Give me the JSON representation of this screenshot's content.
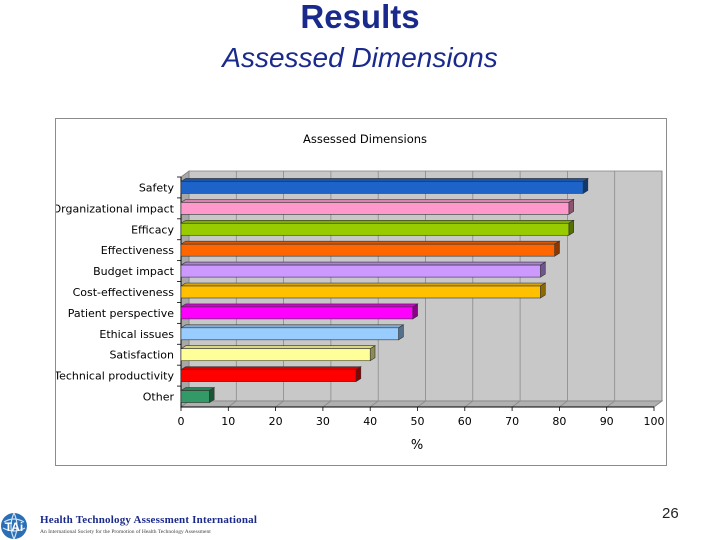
{
  "slide": {
    "title": "Results",
    "subtitle": "Assessed Dimensions",
    "page_number": "26"
  },
  "footer": {
    "org_name": "Health Technology Assessment International",
    "org_tagline": "An International Society for the Promotion of Health Technology Assessment",
    "logo_icon": "htai-globe-logo-icon"
  },
  "chart_data": {
    "type": "bar",
    "orientation": "horizontal",
    "title": "Assessed Dimensions",
    "xlabel": "%",
    "ylabel": "",
    "xlim": [
      0,
      100
    ],
    "xticks": [
      0,
      10,
      20,
      30,
      40,
      50,
      60,
      70,
      80,
      90,
      100
    ],
    "grid": true,
    "legend": "none",
    "categories": [
      "Safety",
      "Organizational impact",
      "Efficacy",
      "Effectiveness",
      "Budget impact",
      "Cost-effectiveness",
      "Patient perspective",
      "Ethical issues",
      "Satisfaction",
      "Technical productivity",
      "Other"
    ],
    "values": [
      85,
      82,
      82,
      79,
      76,
      76,
      49,
      46,
      40,
      37,
      6
    ],
    "colors": [
      "#1e64c8",
      "#ff99cc",
      "#99cc00",
      "#ff6600",
      "#cc99ff",
      "#ffc000",
      "#ff00ff",
      "#99ccff",
      "#ffff99",
      "#ff0000",
      "#339966"
    ]
  }
}
